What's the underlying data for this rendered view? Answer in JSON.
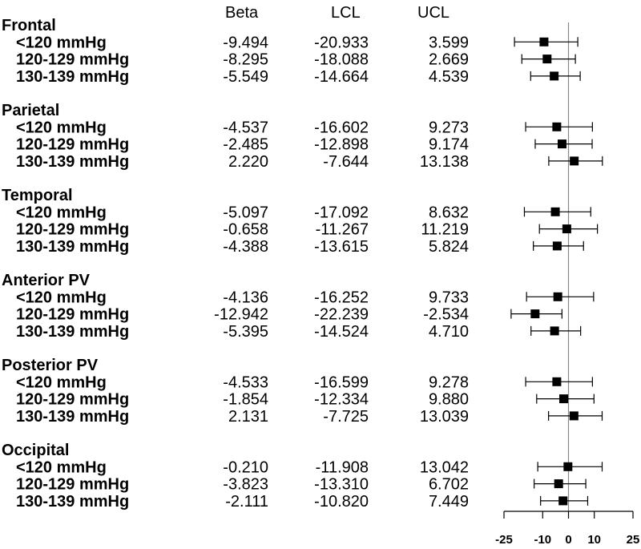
{
  "chart_data": {
    "type": "forest",
    "columns": [
      "Beta",
      "LCL",
      "UCL"
    ],
    "groups": [
      {
        "name": "Frontal",
        "rows": [
          {
            "label": "<120 mmHg",
            "beta": -9.494,
            "lcl": -20.933,
            "ucl": 3.599,
            "beta_text": "-9.494",
            "lcl_text": "-20.933",
            "ucl_text": "3.599"
          },
          {
            "label": "120-129 mmHg",
            "beta": -8.295,
            "lcl": -18.088,
            "ucl": 2.669,
            "beta_text": "-8.295",
            "lcl_text": "-18.088",
            "ucl_text": "2.669"
          },
          {
            "label": "130-139 mmHg",
            "beta": -5.549,
            "lcl": -14.664,
            "ucl": 4.539,
            "beta_text": "-5.549",
            "lcl_text": "-14.664",
            "ucl_text": "4.539"
          }
        ]
      },
      {
        "name": "Parietal",
        "rows": [
          {
            "label": "<120 mmHg",
            "beta": -4.537,
            "lcl": -16.602,
            "ucl": 9.273,
            "beta_text": "-4.537",
            "lcl_text": "-16.602",
            "ucl_text": "9.273"
          },
          {
            "label": "120-129 mmHg",
            "beta": -2.485,
            "lcl": -12.898,
            "ucl": 9.174,
            "beta_text": "-2.485",
            "lcl_text": "-12.898",
            "ucl_text": "9.174"
          },
          {
            "label": "130-139 mmHg",
            "beta": 2.22,
            "lcl": -7.644,
            "ucl": 13.138,
            "beta_text": "2.220",
            "lcl_text": "-7.644",
            "ucl_text": "13.138"
          }
        ]
      },
      {
        "name": "Temporal",
        "rows": [
          {
            "label": "<120 mmHg",
            "beta": -5.097,
            "lcl": -17.092,
            "ucl": 8.632,
            "beta_text": "-5.097",
            "lcl_text": "-17.092",
            "ucl_text": "8.632"
          },
          {
            "label": "120-129 mmHg",
            "beta": -0.658,
            "lcl": -11.267,
            "ucl": 11.219,
            "beta_text": "-0.658",
            "lcl_text": "-11.267",
            "ucl_text": "11.219"
          },
          {
            "label": "130-139 mmHg",
            "beta": -4.388,
            "lcl": -13.615,
            "ucl": 5.824,
            "beta_text": "-4.388",
            "lcl_text": "-13.615",
            "ucl_text": "5.824"
          }
        ]
      },
      {
        "name": "Anterior PV",
        "rows": [
          {
            "label": "<120 mmHg",
            "beta": -4.136,
            "lcl": -16.252,
            "ucl": 9.733,
            "beta_text": "-4.136",
            "lcl_text": "-16.252",
            "ucl_text": "9.733"
          },
          {
            "label": "120-129 mmHg",
            "beta": -12.942,
            "lcl": -22.239,
            "ucl": -2.534,
            "beta_text": "-12.942",
            "lcl_text": "-22.239",
            "ucl_text": "-2.534"
          },
          {
            "label": "130-139 mmHg",
            "beta": -5.395,
            "lcl": -14.524,
            "ucl": 4.71,
            "beta_text": "-5.395",
            "lcl_text": "-14.524",
            "ucl_text": "4.710"
          }
        ]
      },
      {
        "name": "Posterior PV",
        "rows": [
          {
            "label": "<120 mmHg",
            "beta": -4.533,
            "lcl": -16.599,
            "ucl": 9.278,
            "beta_text": "-4.533",
            "lcl_text": "-16.599",
            "ucl_text": "9.278"
          },
          {
            "label": "120-129 mmHg",
            "beta": -1.854,
            "lcl": -12.334,
            "ucl": 9.88,
            "beta_text": "-1.854",
            "lcl_text": "-12.334",
            "ucl_text": "9.880"
          },
          {
            "label": "130-139 mmHg",
            "beta": 2.131,
            "lcl": -7.725,
            "ucl": 13.039,
            "beta_text": "2.131",
            "lcl_text": "-7.725",
            "ucl_text": "13.039"
          }
        ]
      },
      {
        "name": "Occipital",
        "rows": [
          {
            "label": "<120 mmHg",
            "beta": -0.21,
            "lcl": -11.908,
            "ucl": 13.042,
            "beta_text": "-0.210",
            "lcl_text": "-11.908",
            "ucl_text": "13.042"
          },
          {
            "label": "120-129 mmHg",
            "beta": -3.823,
            "lcl": -13.31,
            "ucl": 6.702,
            "beta_text": "-3.823",
            "lcl_text": "-13.310",
            "ucl_text": "6.702"
          },
          {
            "label": "130-139 mmHg",
            "beta": -2.111,
            "lcl": -10.82,
            "ucl": 7.449,
            "beta_text": "-2.111",
            "lcl_text": "-10.820",
            "ucl_text": "7.449"
          }
        ]
      }
    ],
    "x_axis": {
      "range": [
        -25,
        25
      ],
      "ticks": [
        -25,
        -10,
        0,
        10,
        25
      ],
      "tick_labels": [
        "-25",
        "-10",
        "0",
        "10",
        "25"
      ],
      "reference_line": 0
    },
    "marker": "square",
    "color": "#000000",
    "reference_line_color": "#888888"
  }
}
